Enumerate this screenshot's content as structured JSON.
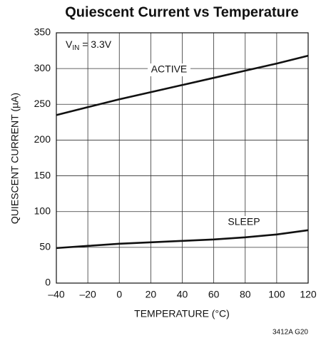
{
  "chart_data": {
    "type": "line",
    "title": "Quiescent Current vs Temperature",
    "xlabel": "TEMPERATURE (°C)",
    "ylabel": "QUIESCENT CURRENT (µA)",
    "annotation": {
      "main": "V",
      "sub": "IN",
      "rest": " = 3.3V"
    },
    "footnote": "3412A G20",
    "x": [
      -40,
      -20,
      0,
      20,
      40,
      60,
      80,
      100,
      120
    ],
    "series": [
      {
        "name": "ACTIVE",
        "color": "#111111",
        "values": [
          235,
          246,
          257,
          267,
          277,
          287,
          297,
          307,
          318
        ]
      },
      {
        "name": "SLEEP",
        "color": "#111111",
        "values": [
          49,
          52,
          55,
          57,
          59,
          61,
          64,
          68,
          74
        ]
      }
    ],
    "xlim": [
      -40,
      120
    ],
    "ylim": [
      0,
      350
    ],
    "xticks": [
      {
        "value": -40,
        "label": "–40"
      },
      {
        "value": -20,
        "label": "–20"
      },
      0,
      20,
      40,
      60,
      80,
      100,
      120
    ],
    "yticks": [
      0,
      50,
      100,
      150,
      200,
      250,
      300,
      350
    ],
    "grid": true
  }
}
